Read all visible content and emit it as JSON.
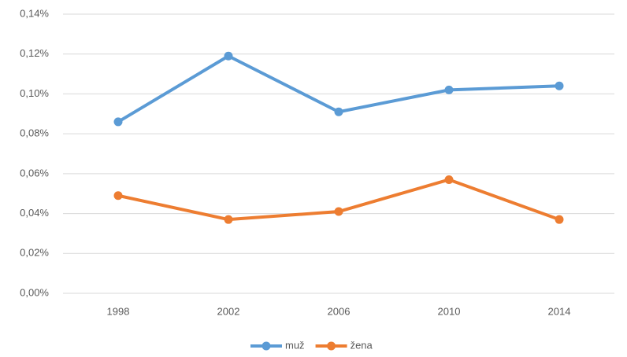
{
  "chart_data": {
    "type": "line",
    "categories": [
      "1998",
      "2002",
      "2006",
      "2010",
      "2014"
    ],
    "series": [
      {
        "name": "muž",
        "color": "#5b9bd5",
        "values": [
          0.086,
          0.119,
          0.091,
          0.102,
          0.104
        ]
      },
      {
        "name": "žena",
        "color": "#ed7d31",
        "values": [
          0.049,
          0.037,
          0.041,
          0.057,
          0.037
        ]
      }
    ],
    "ylim": [
      0,
      0.14
    ],
    "yticks": [
      {
        "value": 0,
        "label": "0,00%"
      },
      {
        "value": 0.02,
        "label": "0,02%"
      },
      {
        "value": 0.04,
        "label": "0,04%"
      },
      {
        "value": 0.06,
        "label": "0,06%"
      },
      {
        "value": 0.08,
        "label": "0,08%"
      },
      {
        "value": 0.1,
        "label": "0,10%"
      },
      {
        "value": 0.12,
        "label": "0,12%"
      },
      {
        "value": 0.14,
        "label": "0,14%"
      }
    ],
    "grid": true,
    "legend": "bottom"
  }
}
